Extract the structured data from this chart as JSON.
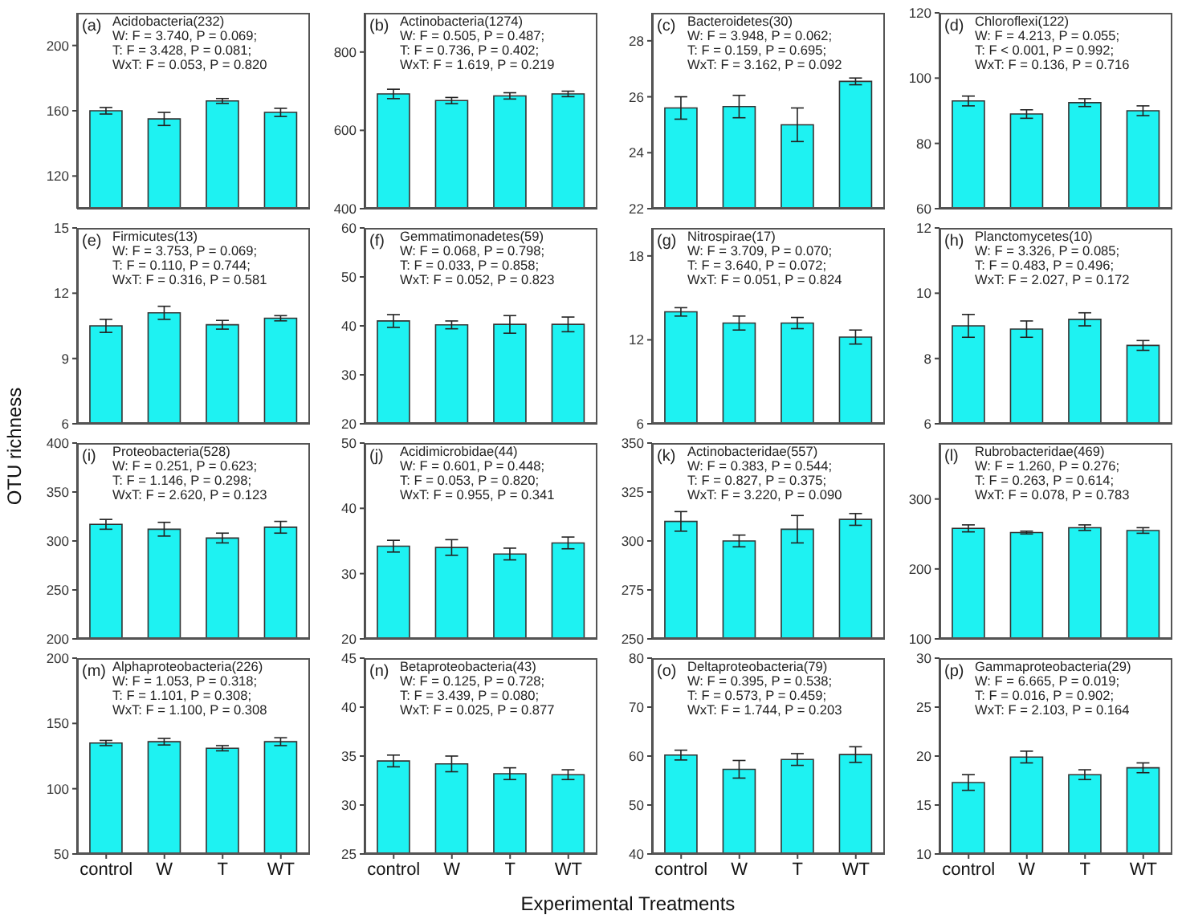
{
  "chart_data": [
    {
      "type": "bar",
      "title": "Acidobacteria(232)",
      "annotations": [
        "(a)",
        "W: F = 3.740, P = 0.069;",
        "T: F = 3.428, P = 0.081;",
        "WxT: F = 0.053, P = 0.820"
      ],
      "categories": [
        null,
        null,
        null,
        null
      ],
      "values": [
        160,
        155,
        166,
        159
      ],
      "errors": [
        2,
        4,
        1.5,
        2.5
      ],
      "color": "#1ef2f2",
      "ylim": [
        100,
        220
      ],
      "yticks": [
        120,
        160,
        200
      ],
      "tick_labels": "y"
    },
    {
      "type": "bar",
      "title": "Actinobacteria(1274)",
      "annotations": [
        "(b)",
        "W: F = 0.505, P = 0.487;",
        "T: F = 0.736, P = 0.402;",
        "WxT: F = 1.619, P = 0.219"
      ],
      "categories": [
        null,
        null,
        null,
        null
      ],
      "values": [
        693,
        676,
        688,
        693
      ],
      "errors": [
        12,
        8,
        8,
        7
      ],
      "color": "#1ef2f2",
      "ylim": [
        400,
        900
      ],
      "yticks": [
        400,
        600,
        800
      ],
      "tick_labels": "y"
    },
    {
      "type": "bar",
      "title": "Bacteroidetes(30)",
      "annotations": [
        "(c)",
        "W: F = 3.948, P = 0.062;",
        "T: F = 0.159, P = 0.695;",
        "WxT: F = 3.162, P = 0.092"
      ],
      "categories": [
        null,
        null,
        null,
        null
      ],
      "values": [
        25.6,
        25.65,
        25.0,
        26.55
      ],
      "errors": [
        0.4,
        0.4,
        0.6,
        0.12
      ],
      "color": "#1ef2f2",
      "ylim": [
        22,
        29
      ],
      "yticks": [
        22,
        24,
        26,
        28
      ],
      "tick_labels": "y"
    },
    {
      "type": "bar",
      "title": "Chloroflexi(122)",
      "annotations": [
        "(d)",
        "W: F = 4.213, P = 0.055;",
        "T: F < 0.001, P = 0.992;",
        "WxT: F = 0.136, P = 0.716"
      ],
      "categories": [
        null,
        null,
        null,
        null
      ],
      "values": [
        93,
        89,
        92.5,
        90
      ],
      "errors": [
        1.5,
        1.3,
        1.2,
        1.5
      ],
      "color": "#1ef2f2",
      "ylim": [
        60,
        120
      ],
      "yticks": [
        60,
        80,
        100,
        120
      ],
      "tick_labels": "y"
    },
    {
      "type": "bar",
      "title": "Firmicutes(13)",
      "ylabel": "OTU richness",
      "annotations": [
        "(e)",
        "W: F = 3.753, P = 0.069;",
        "T: F = 0.110, P = 0.744;",
        "WxT: F = 0.316, P = 0.581"
      ],
      "categories": [
        null,
        null,
        null,
        null
      ],
      "values": [
        10.5,
        11.1,
        10.55,
        10.85
      ],
      "errors": [
        0.3,
        0.3,
        0.2,
        0.12
      ],
      "color": "#1ef2f2",
      "ylim": [
        6,
        15
      ],
      "yticks": [
        6,
        9,
        12,
        15
      ],
      "tick_labels": "y"
    },
    {
      "type": "bar",
      "title": "Gemmatimonadetes(59)",
      "annotations": [
        "(f)",
        "W: F = 0.068, P = 0.798;",
        "T: F = 0.033, P = 0.858;",
        "WxT: F = 0.052, P = 0.823"
      ],
      "categories": [
        null,
        null,
        null,
        null
      ],
      "values": [
        41,
        40.2,
        40.3,
        40.3
      ],
      "errors": [
        1.3,
        0.8,
        1.8,
        1.5
      ],
      "color": "#1ef2f2",
      "ylim": [
        20,
        60
      ],
      "yticks": [
        20,
        30,
        40,
        50,
        60
      ],
      "tick_labels": "y"
    },
    {
      "type": "bar",
      "title": "Nitrospirae(17)",
      "annotations": [
        "(g)",
        "W: F = 3.709, P = 0.070;",
        "T: F = 3.640, P = 0.072;",
        "WxT: F = 0.051, P = 0.824"
      ],
      "categories": [
        null,
        null,
        null,
        null
      ],
      "values": [
        14,
        13.2,
        13.2,
        12.2
      ],
      "errors": [
        0.3,
        0.5,
        0.4,
        0.5
      ],
      "color": "#1ef2f2",
      "ylim": [
        6,
        20
      ],
      "yticks": [
        6,
        12,
        18
      ],
      "tick_labels": "y"
    },
    {
      "type": "bar",
      "title": "Planctomycetes(10)",
      "annotations": [
        "(h)",
        "W: F = 3.326, P = 0.085;",
        "T: F = 0.483, P = 0.496;",
        "WxT: F = 2.027, P = 0.172"
      ],
      "categories": [
        null,
        null,
        null,
        null
      ],
      "values": [
        9.0,
        8.9,
        9.2,
        8.4
      ],
      "errors": [
        0.35,
        0.25,
        0.2,
        0.15
      ],
      "color": "#1ef2f2",
      "ylim": [
        6,
        12
      ],
      "yticks": [
        6,
        8,
        10,
        12
      ],
      "tick_labels": "y"
    },
    {
      "type": "bar",
      "title": "Proteobacteria(528)",
      "annotations": [
        "(i)",
        "W: F = 0.251, P = 0.623;",
        "T: F = 1.146, P = 0.298;",
        "WxT: F = 2.620, P = 0.123"
      ],
      "categories": [
        null,
        null,
        null,
        null
      ],
      "values": [
        317,
        312,
        303,
        314
      ],
      "errors": [
        5,
        7,
        5,
        6
      ],
      "color": "#1ef2f2",
      "ylim": [
        200,
        400
      ],
      "yticks": [
        200,
        250,
        300,
        350,
        400
      ],
      "tick_labels": "y"
    },
    {
      "type": "bar",
      "title": "Acidimicrobidae(44)",
      "annotations": [
        "(j)",
        "W: F = 0.601, P = 0.448;",
        "T: F = 0.053, P = 0.820;",
        "WxT: F = 0.955, P = 0.341"
      ],
      "categories": [
        null,
        null,
        null,
        null
      ],
      "values": [
        34.2,
        34,
        33,
        34.7
      ],
      "errors": [
        0.9,
        1.2,
        0.9,
        0.9
      ],
      "color": "#1ef2f2",
      "ylim": [
        20,
        50
      ],
      "yticks": [
        20,
        30,
        40,
        50
      ],
      "tick_labels": "y"
    },
    {
      "type": "bar",
      "title": "Actinobacteridae(557)",
      "annotations": [
        "(k)",
        "W: F = 0.383, P = 0.544;",
        "T: F = 0.827, P = 0.375;",
        "WxT: F = 3.220, P = 0.090"
      ],
      "categories": [
        null,
        null,
        null,
        null
      ],
      "values": [
        310,
        300,
        306,
        311
      ],
      "errors": [
        5,
        3,
        7,
        3
      ],
      "color": "#1ef2f2",
      "ylim": [
        250,
        350
      ],
      "yticks": [
        250,
        275,
        300,
        325,
        350
      ],
      "tick_labels": "y"
    },
    {
      "type": "bar",
      "title": "Rubrobacteridae(469)",
      "annotations": [
        "(l)",
        "W: F = 1.260, P = 0.276;",
        "T: F = 0.263, P = 0.614;",
        "WxT: F = 0.078, P = 0.783"
      ],
      "categories": [
        null,
        null,
        null,
        null
      ],
      "values": [
        258,
        252,
        259,
        255
      ],
      "errors": [
        5,
        2,
        4,
        4
      ],
      "color": "#1ef2f2",
      "ylim": [
        100,
        380
      ],
      "yticks": [
        100,
        200,
        300
      ],
      "tick_labels": "y"
    },
    {
      "type": "bar",
      "title": "Alphaproteobacteria(226)",
      "annotations": [
        "(m)",
        "W: F = 1.053, P = 0.318;",
        "T: F = 1.101, P = 0.308;",
        "WxT: F = 1.100, P = 0.308"
      ],
      "categories": [
        "control",
        "W",
        "T",
        "WT"
      ],
      "values": [
        135,
        136,
        131,
        136
      ],
      "errors": [
        2,
        2.5,
        2,
        3
      ],
      "color": "#1ef2f2",
      "ylim": [
        50,
        200
      ],
      "yticks": [
        50,
        100,
        150,
        200
      ]
    },
    {
      "type": "bar",
      "title": "Betaproteobacteria(43)",
      "xlabel": "Experimental Treatments",
      "annotations": [
        "(n)",
        "W: F = 0.125, P = 0.728;",
        "T: F = 3.439, P = 0.080;",
        "WxT: F = 0.025, P = 0.877"
      ],
      "categories": [
        "control",
        "W",
        "T",
        "WT"
      ],
      "values": [
        34.5,
        34.2,
        33.2,
        33.1
      ],
      "errors": [
        0.6,
        0.8,
        0.6,
        0.5
      ],
      "color": "#1ef2f2",
      "ylim": [
        25,
        45
      ],
      "yticks": [
        25,
        30,
        35,
        40,
        45
      ]
    },
    {
      "type": "bar",
      "title": "Deltaproteobacteria(79)",
      "annotations": [
        "(o)",
        "W: F = 0.395, P = 0.538;",
        "T: F = 0.573, P = 0.459;",
        "WxT: F = 1.744, P = 0.203"
      ],
      "categories": [
        "control",
        "W",
        "T",
        "WT"
      ],
      "values": [
        60.2,
        57.3,
        59.3,
        60.3
      ],
      "errors": [
        1,
        1.8,
        1.2,
        1.6
      ],
      "color": "#1ef2f2",
      "ylim": [
        40,
        80
      ],
      "yticks": [
        40,
        50,
        60,
        70,
        80
      ]
    },
    {
      "type": "bar",
      "title": "Gammaproteobacteria(29)",
      "annotations": [
        "(p)",
        "W: F = 6.665, P = 0.019;",
        "T: F = 0.016, P = 0.902;",
        "WxT: F = 2.103, P = 0.164"
      ],
      "categories": [
        "control",
        "W",
        "T",
        "WT"
      ],
      "values": [
        17.3,
        19.9,
        18.1,
        18.8
      ],
      "errors": [
        0.8,
        0.6,
        0.5,
        0.5
      ],
      "color": "#1ef2f2",
      "ylim": [
        10,
        30
      ],
      "yticks": [
        10,
        15,
        20,
        25,
        30
      ]
    }
  ]
}
